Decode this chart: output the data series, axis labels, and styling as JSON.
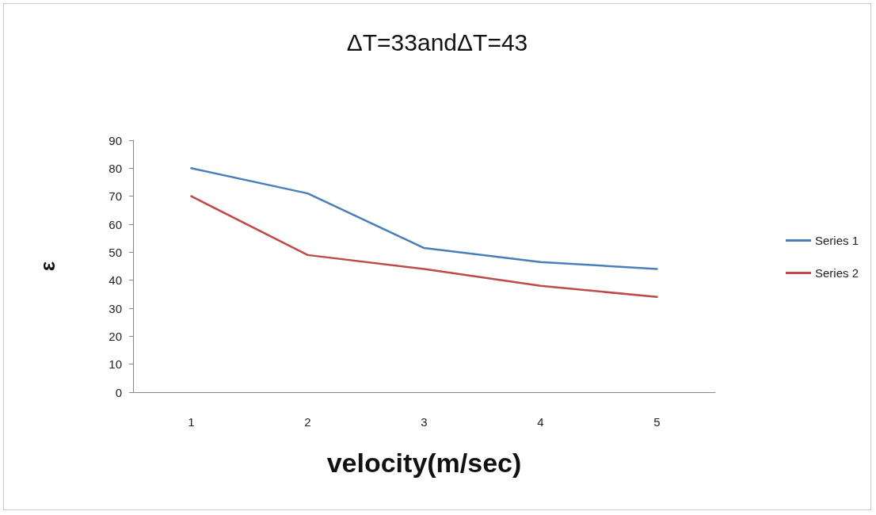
{
  "chart_data": {
    "type": "line",
    "title": "ΔT=33andΔT=43",
    "xlabel": "velocity(m/sec)",
    "ylabel": "ε",
    "categories": [
      "1",
      "2",
      "3",
      "4",
      "5"
    ],
    "series": [
      {
        "name": "Series 1",
        "color": "#4a7ebb",
        "values": [
          80,
          71,
          51.5,
          46.5,
          44
        ]
      },
      {
        "name": "Series 2",
        "color": "#be4b48",
        "values": [
          70,
          49,
          44,
          38,
          34
        ]
      }
    ],
    "ylim": [
      0,
      90
    ],
    "yticks": [
      0,
      10,
      20,
      30,
      40,
      50,
      60,
      70,
      80,
      90
    ],
    "grid": false,
    "legend": "right",
    "marker": "none",
    "line_style": "solid"
  }
}
